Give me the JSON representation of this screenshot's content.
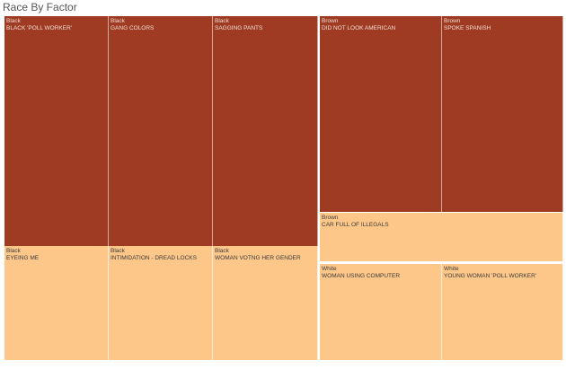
{
  "title": "Race By Factor",
  "colors": {
    "dark": "#9e3b22",
    "light": "#fdc78a"
  },
  "chart_data": {
    "type": "treemap",
    "title": "Race By Factor",
    "groups": [
      {
        "name": "Black",
        "cells": [
          {
            "factor": "BLACK 'POLL WORKER'",
            "shade": "dark"
          },
          {
            "factor": "GANG COLORS",
            "shade": "dark"
          },
          {
            "factor": "SAGGING PANTS",
            "shade": "dark"
          },
          {
            "factor": "EYEING ME",
            "shade": "light"
          },
          {
            "factor": "INTIMIDATION - DREAD LOCKS",
            "shade": "light"
          },
          {
            "factor": "WOMAN VOTNG HER GENDER",
            "shade": "light"
          }
        ]
      },
      {
        "name": "Brown",
        "cells": [
          {
            "factor": "DID NOT LOOK AMERICAN",
            "shade": "dark"
          },
          {
            "factor": "SPOKE SPANISH",
            "shade": "dark"
          },
          {
            "factor": "CAR FULL OF ILLEGALS",
            "shade": "light"
          }
        ]
      },
      {
        "name": "White",
        "cells": [
          {
            "factor": "WOMAN USING COMPUTER",
            "shade": "light"
          },
          {
            "factor": "YOUNG WOMAN 'POLL WORKER'",
            "shade": "light"
          }
        ]
      }
    ]
  }
}
